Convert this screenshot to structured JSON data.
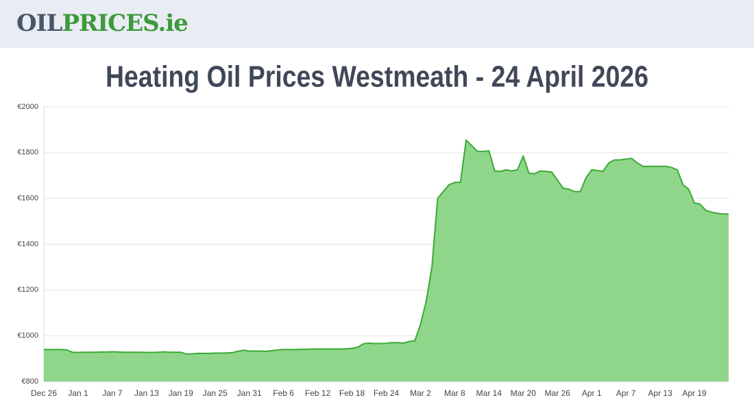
{
  "header": {
    "logo_main": "OIL",
    "logo_accent": "PRICES.ie"
  },
  "chart_data": {
    "type": "area",
    "title": "Heating Oil Prices Westmeath - 24 April 2026",
    "categories": [
      "Dec 26",
      null,
      null,
      null,
      null,
      null,
      "Jan 1",
      null,
      null,
      null,
      null,
      null,
      "Jan 7",
      null,
      null,
      null,
      null,
      null,
      "Jan 13",
      null,
      null,
      null,
      null,
      null,
      "Jan 19",
      null,
      null,
      null,
      null,
      null,
      "Jan 25",
      null,
      null,
      null,
      null,
      null,
      "Jan 31",
      null,
      null,
      null,
      null,
      null,
      "Feb 6",
      null,
      null,
      null,
      null,
      null,
      "Feb 12",
      null,
      null,
      null,
      null,
      null,
      "Feb 18",
      null,
      null,
      null,
      null,
      null,
      "Feb 24",
      null,
      null,
      null,
      null,
      null,
      "Mar 2",
      null,
      null,
      null,
      null,
      null,
      "Mar 8",
      null,
      null,
      null,
      null,
      null,
      "Mar 14",
      null,
      null,
      null,
      null,
      null,
      "Mar 20",
      null,
      null,
      null,
      null,
      null,
      "Mar 26",
      null,
      null,
      null,
      null,
      null,
      "Apr 1",
      null,
      null,
      null,
      null,
      null,
      "Apr 7",
      null,
      null,
      null,
      null,
      null,
      "Apr 13",
      null,
      null,
      null,
      null,
      null,
      "Apr 19",
      null,
      null,
      null,
      null,
      null,
      null
    ],
    "values": [
      940,
      940,
      940,
      940,
      938,
      928,
      927,
      928,
      928,
      928,
      929,
      929,
      930,
      929,
      928,
      928,
      928,
      928,
      927,
      927,
      928,
      930,
      928,
      928,
      928,
      920,
      921,
      923,
      923,
      923,
      924,
      924,
      925,
      926,
      932,
      937,
      933,
      933,
      933,
      932,
      935,
      938,
      940,
      940,
      940,
      941,
      941,
      942,
      942,
      942,
      942,
      942,
      942,
      943,
      945,
      950,
      965,
      968,
      966,
      966,
      967,
      970,
      970,
      968,
      975,
      978,
      1050,
      1150,
      1300,
      1600,
      1630,
      1660,
      1670,
      1670,
      1855,
      1830,
      1805,
      1805,
      1808,
      1720,
      1718,
      1725,
      1720,
      1725,
      1785,
      1710,
      1708,
      1720,
      1718,
      1715,
      1680,
      1645,
      1640,
      1630,
      1630,
      1690,
      1725,
      1722,
      1718,
      1755,
      1768,
      1768,
      1772,
      1775,
      1755,
      1740,
      1740,
      1740,
      1740,
      1740,
      1735,
      1725,
      1660,
      1640,
      1580,
      1575,
      1548,
      1540,
      1535,
      1532,
      1532
    ],
    "color": "#3aaa35",
    "fill_color": "#8fd68a",
    "ylim": [
      800,
      2000
    ],
    "yticks": [
      {
        "value": 800,
        "label": "€800"
      },
      {
        "value": 1000,
        "label": "€1000"
      },
      {
        "value": 1200,
        "label": "€1200"
      },
      {
        "value": 1400,
        "label": "€1400"
      },
      {
        "value": 1600,
        "label": "€1600"
      },
      {
        "value": 1800,
        "label": "€1800"
      },
      {
        "value": 2000,
        "label": "€2000"
      }
    ],
    "grid": true
  }
}
